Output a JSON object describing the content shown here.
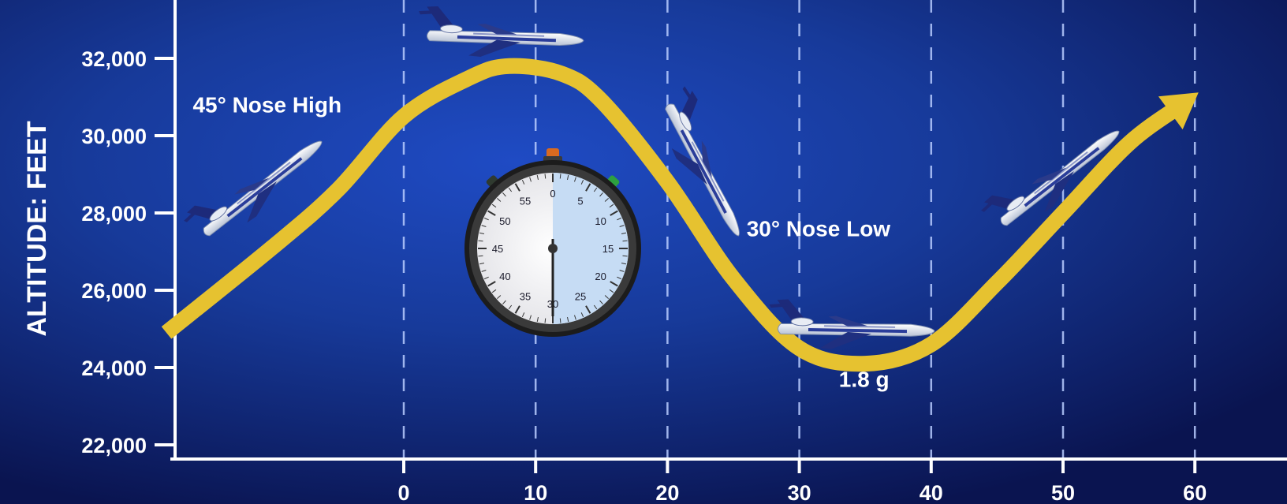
{
  "chart_data": {
    "type": "line",
    "ylabel": "ALTITUDE: FEET",
    "xlabel": "",
    "y_ticks": [
      "22,000",
      "24,000",
      "26,000",
      "28,000",
      "30,000",
      "32,000"
    ],
    "x_ticks": [
      "0",
      "10",
      "20",
      "30",
      "40",
      "50",
      "60"
    ],
    "ylim": [
      22000,
      33000
    ],
    "xlim": [
      -18,
      63
    ],
    "grid": "vertical-dashed",
    "series": [
      {
        "x": [
          -18,
          -10,
          -5,
          0,
          5,
          8,
          12,
          15,
          20,
          25,
          30,
          35,
          40,
          45,
          50,
          55,
          59
        ],
        "y": [
          24900,
          27100,
          28600,
          30500,
          31500,
          31800,
          31600,
          30900,
          28800,
          26300,
          24500,
          24100,
          24600,
          26200,
          28000,
          29800,
          30800
        ]
      }
    ],
    "annotations": [
      {
        "text": "45° Nose High",
        "x": -16,
        "y": 30600
      },
      {
        "text": "30° Nose Low",
        "x": 26,
        "y": 27400
      },
      {
        "text": "1.8 g",
        "x": 33,
        "y": 23500
      }
    ],
    "colors": {
      "curve": "#e6c230",
      "background_center": "#1a3fb0",
      "background_edge": "#0a1450",
      "text": "#ffffff"
    }
  },
  "stopwatch": {
    "numbers": [
      "0",
      "5",
      "10",
      "15",
      "20",
      "25",
      "30",
      "35",
      "40",
      "45",
      "50",
      "55"
    ],
    "icon": "stopwatch-icon"
  },
  "aircraft": [
    {
      "icon": "jet-aircraft-icon",
      "attitude": "climb"
    },
    {
      "icon": "jet-aircraft-icon",
      "attitude": "level-top"
    },
    {
      "icon": "jet-aircraft-icon",
      "attitude": "dive"
    },
    {
      "icon": "jet-aircraft-icon",
      "attitude": "level-bottom"
    },
    {
      "icon": "jet-aircraft-icon",
      "attitude": "climb"
    }
  ]
}
